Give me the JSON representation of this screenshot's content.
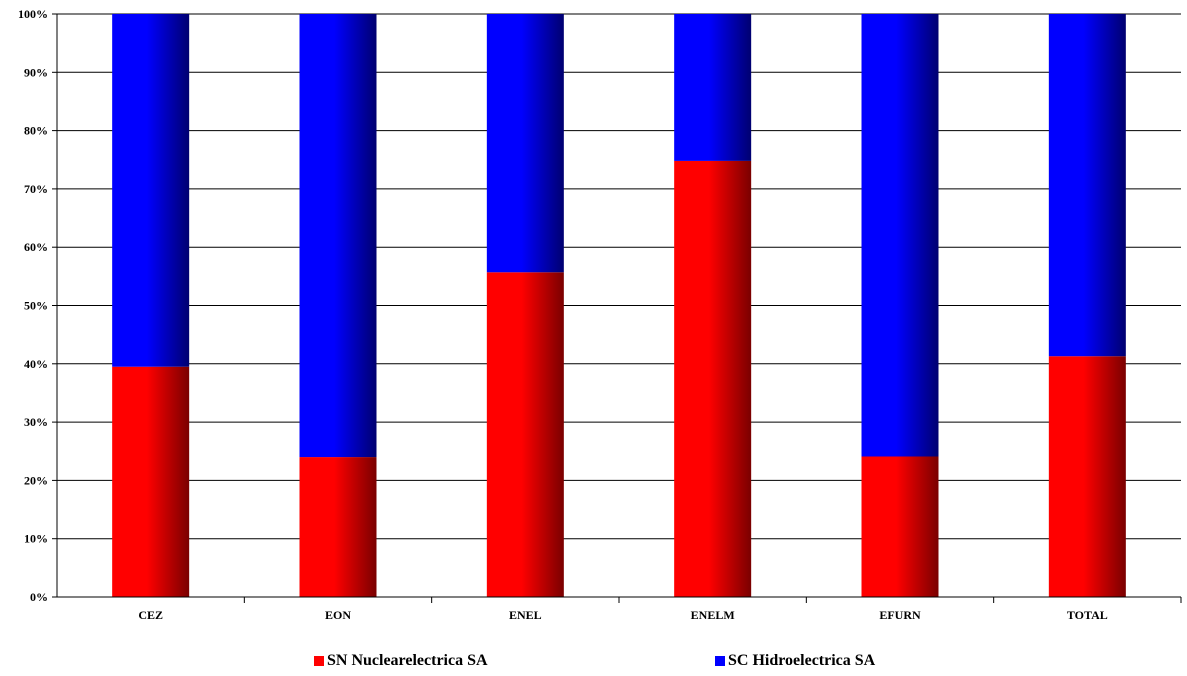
{
  "chart_data": {
    "type": "bar",
    "stacked": true,
    "categories": [
      "CEZ",
      "EON",
      "ENEL",
      "ENELM",
      "EFURN",
      "TOTAL"
    ],
    "series": [
      {
        "name": "SN Nuclearelectrica SA",
        "color": "#ff0000",
        "color_dark": "#7a0000",
        "values": [
          39.5,
          24.0,
          55.7,
          74.8,
          24.1,
          41.3
        ]
      },
      {
        "name": "SC Hidroelectrica SA",
        "color": "#0000ff",
        "color_dark": "#000070",
        "values": [
          60.5,
          76.0,
          44.3,
          25.2,
          75.9,
          58.7
        ]
      }
    ],
    "ylim": [
      0,
      100
    ],
    "yticks": [
      "0%",
      "10%",
      "20%",
      "30%",
      "40%",
      "50%",
      "60%",
      "70%",
      "80%",
      "90%",
      "100%"
    ],
    "grid": true,
    "legend_position": "bottom"
  }
}
